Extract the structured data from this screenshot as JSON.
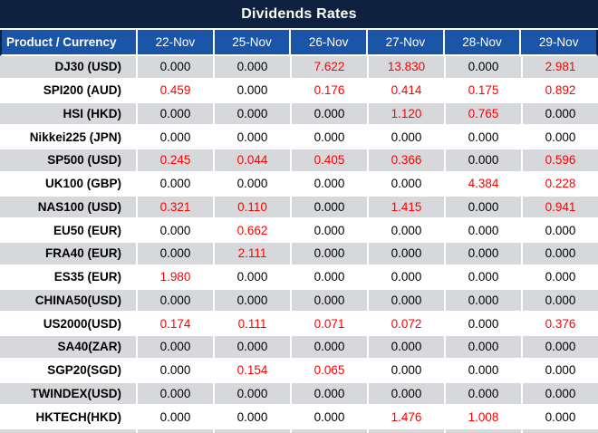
{
  "colors": {
    "title_bg": "#0E2240",
    "header_bg": "#1A55A8",
    "header_text": "#FFFFFF",
    "alt_row_bg": "#D6D8DB",
    "zero_value_text": "#000000",
    "dividend_value_text": "#FF0000"
  },
  "chart_data": {
    "type": "table",
    "title": "Dividends Rates",
    "corner_header": "Product / Currency",
    "date_columns": [
      "22-Nov",
      "25-Nov",
      "26-Nov",
      "27-Nov",
      "28-Nov",
      "29-Nov"
    ],
    "value_style_rule": "non-zero dividend values rendered in red, zeros in black",
    "rows": [
      {
        "product": "DJ30 (USD)",
        "values": [
          "0.000",
          "0.000",
          "7.622",
          "13.830",
          "0.000",
          "2.981"
        ]
      },
      {
        "product": "SPI200 (AUD)",
        "values": [
          "0.459",
          "0.000",
          "0.176",
          "0.414",
          "0.175",
          "0.892"
        ]
      },
      {
        "product": "HSI (HKD)",
        "values": [
          "0.000",
          "0.000",
          "0.000",
          "1.120",
          "0.765",
          "0.000"
        ]
      },
      {
        "product": "Nikkei225 (JPN)",
        "values": [
          "0.000",
          "0.000",
          "0.000",
          "0.000",
          "0.000",
          "0.000"
        ]
      },
      {
        "product": "SP500 (USD)",
        "values": [
          "0.245",
          "0.044",
          "0.405",
          "0.366",
          "0.000",
          "0.596"
        ]
      },
      {
        "product": "UK100 (GBP)",
        "values": [
          "0.000",
          "0.000",
          "0.000",
          "0.000",
          "4.384",
          "0.228"
        ]
      },
      {
        "product": "NAS100 (USD)",
        "values": [
          "0.321",
          "0.110",
          "0.000",
          "1.415",
          "0.000",
          "0.941"
        ]
      },
      {
        "product": "EU50 (EUR)",
        "values": [
          "0.000",
          "0.662",
          "0.000",
          "0.000",
          "0.000",
          "0.000"
        ]
      },
      {
        "product": "FRA40 (EUR)",
        "values": [
          "0.000",
          "2.111",
          "0.000",
          "0.000",
          "0.000",
          "0.000"
        ]
      },
      {
        "product": "ES35 (EUR)",
        "values": [
          "1.980",
          "0.000",
          "0.000",
          "0.000",
          "0.000",
          "0.000"
        ]
      },
      {
        "product": "CHINA50(USD)",
        "values": [
          "0.000",
          "0.000",
          "0.000",
          "0.000",
          "0.000",
          "0.000"
        ]
      },
      {
        "product": "US2000(USD)",
        "values": [
          "0.174",
          "0.111",
          "0.071",
          "0.072",
          "0.000",
          "0.376"
        ]
      },
      {
        "product": "SA40(ZAR)",
        "values": [
          "0.000",
          "0.000",
          "0.000",
          "0.000",
          "0.000",
          "0.000"
        ]
      },
      {
        "product": "SGP20(SGD)",
        "values": [
          "0.000",
          "0.154",
          "0.065",
          "0.000",
          "0.000",
          "0.000"
        ]
      },
      {
        "product": "TWINDEX(USD)",
        "values": [
          "0.000",
          "0.000",
          "0.000",
          "0.000",
          "0.000",
          "0.000"
        ]
      },
      {
        "product": "HKTECH(HKD)",
        "values": [
          "0.000",
          "0.000",
          "0.000",
          "1.476",
          "1.008",
          "0.000"
        ]
      }
    ]
  }
}
